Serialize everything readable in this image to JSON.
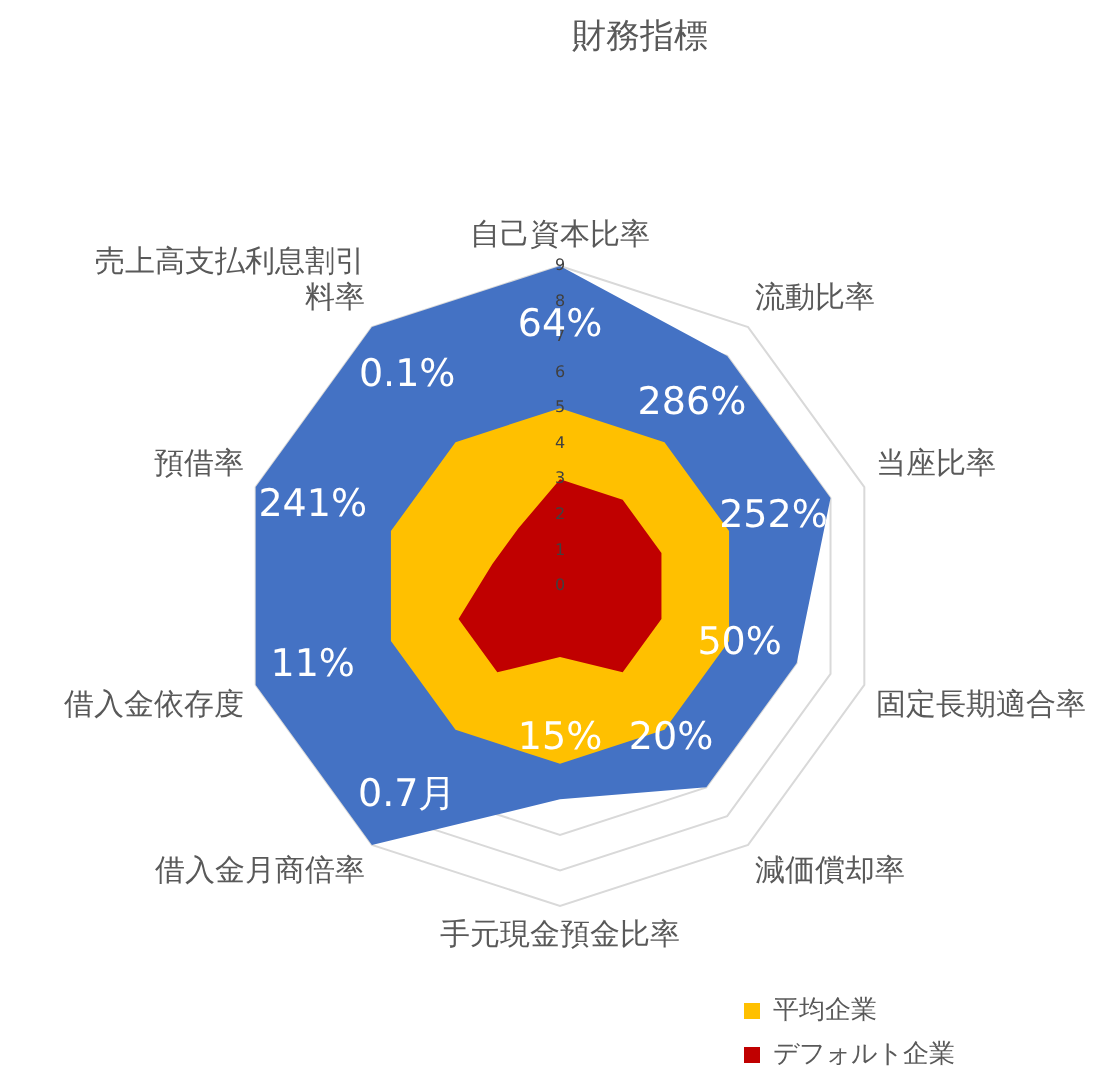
{
  "chart_data": {
    "type": "radar",
    "title": "財務指標",
    "categories": [
      "自己資本比率",
      "流動比率",
      "当座比率",
      "固定長期適合率",
      "減価償却率",
      "手元現金預金比率",
      "借入金月商倍率",
      "借入金依存度",
      "預借率",
      "売上高支払利息割引料率"
    ],
    "series": [
      {
        "color": "#4472c4",
        "values": [
          9,
          8,
          8,
          7,
          7,
          6,
          9,
          9,
          9,
          9
        ]
      },
      {
        "name": "平均企業",
        "color": "#ffc000",
        "values": [
          5,
          5,
          5,
          5,
          5,
          5,
          5,
          5,
          5,
          5
        ]
      },
      {
        "name": "デフォルト企業",
        "color": "#c00000",
        "values": [
          3,
          3,
          3,
          3,
          3,
          2,
          3,
          3,
          2,
          2
        ]
      }
    ],
    "annotations": [
      {
        "text": "64%",
        "x": "自己資本比率"
      },
      {
        "text": "286%",
        "x": "流動比率"
      },
      {
        "text": "252%",
        "x": "当座比率"
      },
      {
        "text": "50%",
        "x": "固定長期適合率"
      },
      {
        "text": "20%",
        "x": "減価償却率"
      },
      {
        "text": "15%",
        "x": "手元現金預金比率"
      },
      {
        "text": "0.7月",
        "x": "借入金月商倍率"
      },
      {
        "text": "11%",
        "x": "借入金依存度"
      },
      {
        "text": "241%",
        "x": "預借率"
      },
      {
        "text": "0.1%",
        "x": "売上高支払利息割引料率"
      }
    ],
    "ylim": [
      0,
      9
    ],
    "yticks": [
      0,
      1,
      2,
      3,
      4,
      5,
      6,
      7,
      8,
      9
    ],
    "grid": true,
    "legend": "bottom right"
  }
}
